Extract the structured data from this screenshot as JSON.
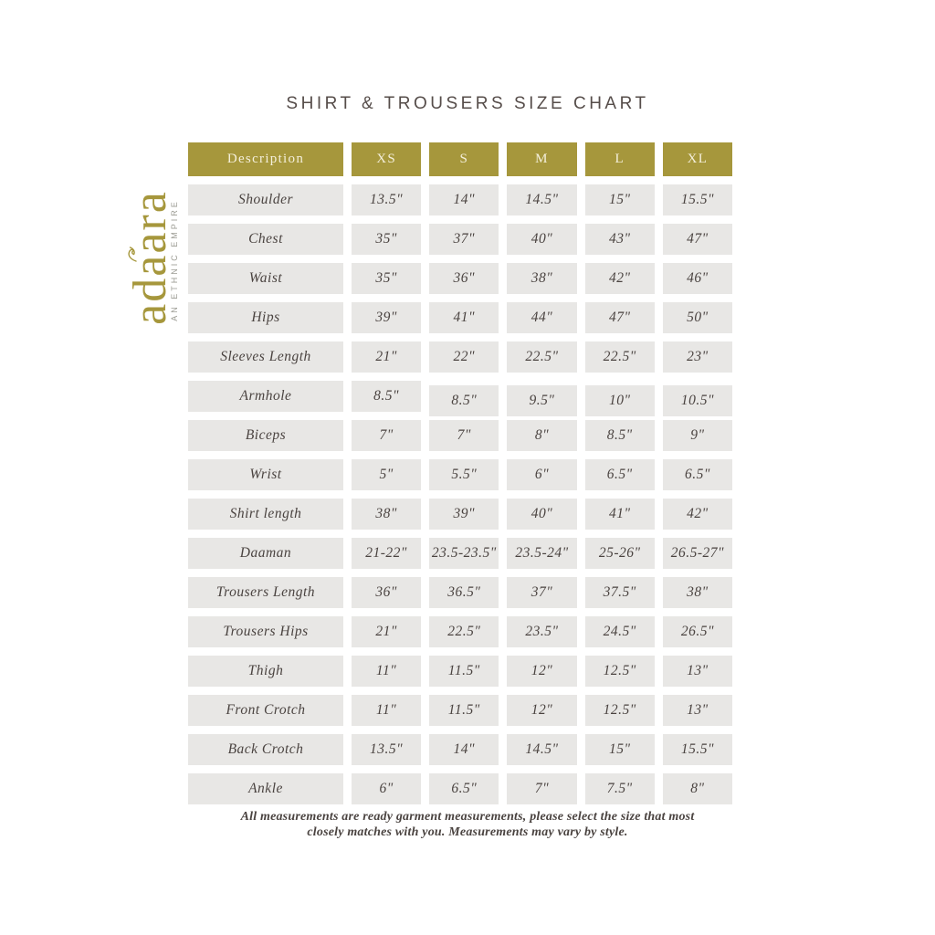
{
  "title": "SHIRT & TROUSERS SIZE CHART",
  "logo": {
    "brand": "adaara",
    "tagline": "AN ETHNIC EMPIRE"
  },
  "colors": {
    "gold": "#A6973C",
    "header_text": "#F4EFDB",
    "cell_bg": "#E8E7E5",
    "text_dark": "#4A4340",
    "title_color": "#564D4A",
    "tagline_gray": "#9C9C94"
  },
  "table": {
    "columns": [
      "Description",
      "XS",
      "S",
      "M",
      "L",
      "XL"
    ],
    "rows": [
      {
        "label": "Shoulder",
        "values": [
          "13.5\"",
          "14\"",
          "14.5\"",
          "15\"",
          "15.5\""
        ]
      },
      {
        "label": "Chest",
        "values": [
          "35\"",
          "37\"",
          "40\"",
          "43\"",
          "47\""
        ]
      },
      {
        "label": "Waist",
        "values": [
          "35\"",
          "36\"",
          "38\"",
          "42\"",
          "46\""
        ]
      },
      {
        "label": "Hips",
        "values": [
          "39\"",
          "41\"",
          "44\"",
          "47\"",
          "50\""
        ]
      },
      {
        "label": "Sleeves Length",
        "values": [
          "21\"",
          "22\"",
          "22.5\"",
          "22.5\"",
          "23\""
        ]
      },
      {
        "label": "Armhole",
        "values": [
          "8.5\"",
          "8.5\"",
          "9.5\"",
          "10\"",
          "10.5\""
        ]
      },
      {
        "label": "Biceps",
        "values": [
          "7\"",
          "7\"",
          "8\"",
          "8.5\"",
          "9\""
        ]
      },
      {
        "label": "Wrist",
        "values": [
          "5\"",
          "5.5\"",
          "6\"",
          "6.5\"",
          "6.5\""
        ]
      },
      {
        "label": "Shirt length",
        "values": [
          "38\"",
          "39\"",
          "40\"",
          "41\"",
          "42\""
        ]
      },
      {
        "label": "Daaman",
        "values": [
          "21-22\"",
          "23.5-23.5\"",
          "23.5-24\"",
          "25-26\"",
          "26.5-27\""
        ]
      },
      {
        "label": "Trousers Length",
        "values": [
          "36\"",
          "36.5\"",
          "37\"",
          "37.5\"",
          "38\""
        ]
      },
      {
        "label": "Trousers Hips",
        "values": [
          "21\"",
          "22.5\"",
          "23.5\"",
          "24.5\"",
          "26.5\""
        ]
      },
      {
        "label": "Thigh",
        "values": [
          "11\"",
          "11.5\"",
          "12\"",
          "12.5\"",
          "13\""
        ]
      },
      {
        "label": "Front Crotch",
        "values": [
          "11\"",
          "11.5\"",
          "12\"",
          "12.5\"",
          "13\""
        ]
      },
      {
        "label": "Back Crotch",
        "values": [
          "13.5\"",
          "14\"",
          "14.5\"",
          "15\"",
          "15.5\""
        ]
      },
      {
        "label": "Ankle",
        "values": [
          "6\"",
          "6.5\"",
          "7\"",
          "7.5\"",
          "8\""
        ]
      }
    ]
  },
  "footer": {
    "line1": "All measurements are ready garment measurements, please select the size that most",
    "line2": "closely matches with you. Measurements may vary by style."
  }
}
